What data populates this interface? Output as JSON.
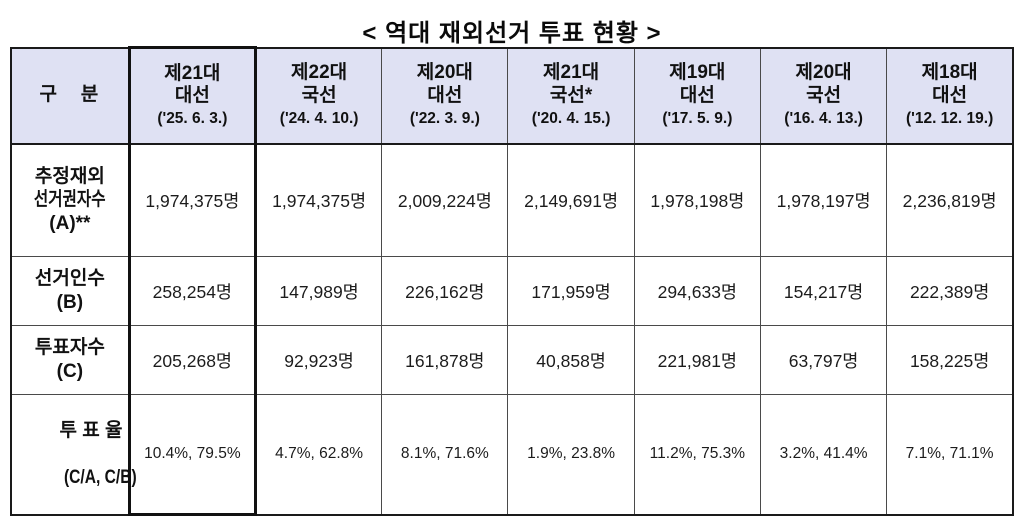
{
  "title": "< 역대 재외선거 투표 현황 >",
  "colors": {
    "header_bg": "#dfe1f3",
    "border": "#4a4a4a",
    "outer_border": "#1a1a1a",
    "highlight_border": "#111111",
    "text": "#111111"
  },
  "table": {
    "corner_label": "구   분",
    "columns": [
      {
        "line1": "제21대",
        "line2": "대선",
        "date": "('25. 6. 3.)",
        "highlighted": true
      },
      {
        "line1": "제22대",
        "line2": "국선",
        "date": "('24. 4. 10.)",
        "highlighted": false
      },
      {
        "line1": "제20대",
        "line2": "대선",
        "date": "('22. 3. 9.)",
        "highlighted": false
      },
      {
        "line1": "제21대",
        "line2": "국선*",
        "date": "('20. 4. 15.)",
        "highlighted": false
      },
      {
        "line1": "제19대",
        "line2": "대선",
        "date": "('17. 5. 9.)",
        "highlighted": false
      },
      {
        "line1": "제20대",
        "line2": "국선",
        "date": "('16. 4. 13.)",
        "highlighted": false
      },
      {
        "line1": "제18대",
        "line2": "대선",
        "date": "('12. 12. 19.)",
        "highlighted": false
      }
    ],
    "rows": [
      {
        "label_line1": "추정재외",
        "label_line2": "선거권자수",
        "label_line3": "(A)**",
        "values": [
          "1,974,375명",
          "1,974,375명",
          "2,009,224명",
          "2,149,691명",
          "1,978,198명",
          "1,978,197명",
          "2,236,819명"
        ]
      },
      {
        "label_line1": "선거인수",
        "label_line2": "(B)",
        "label_line3": "",
        "values": [
          "258,254명",
          "147,989명",
          "226,162명",
          "171,959명",
          "294,633명",
          "154,217명",
          "222,389명"
        ]
      },
      {
        "label_line1": "투표자수",
        "label_line2": "(C)",
        "label_line3": "",
        "values": [
          "205,268명",
          "92,923명",
          "161,878명",
          "40,858명",
          "221,981명",
          "63,797명",
          "158,225명"
        ]
      },
      {
        "label_line1": "투 표 율",
        "label_line2": "(C/A, C/B)",
        "label_line3": "",
        "values": [
          "10.4%, 79.5%",
          "4.7%, 62.8%",
          "8.1%, 71.6%",
          "1.9%, 23.8%",
          "11.2%, 75.3%",
          "3.2%, 41.4%",
          "7.1%, 71.1%"
        ]
      }
    ]
  },
  "chart_data": {
    "type": "table",
    "title": "역대 재외선거 투표 현황",
    "columns": [
      "제21대 대선 ('25. 6. 3.)",
      "제22대 국선 ('24. 4. 10.)",
      "제20대 대선 ('22. 3. 9.)",
      "제21대 국선* ('20. 4. 15.)",
      "제19대 대선 ('17. 5. 9.)",
      "제20대 국선 ('16. 4. 13.)",
      "제18대 대선 ('12. 12. 19.)"
    ],
    "row_labels": [
      "추정재외선거권자수 (A)**",
      "선거인수 (B)",
      "투표자수 (C)",
      "투표율 (C/A, C/B)"
    ],
    "estimated_eligible_A": [
      1974375,
      1974375,
      2009224,
      2149691,
      1978198,
      1978197,
      2236819
    ],
    "registered_voters_B": [
      258254,
      147989,
      226162,
      171959,
      294633,
      154217,
      222389
    ],
    "votes_cast_C": [
      205268,
      92923,
      161878,
      40858,
      221981,
      63797,
      158225
    ],
    "turnout_CA_percent": [
      10.4,
      4.7,
      8.1,
      1.9,
      11.2,
      3.2,
      7.1
    ],
    "turnout_CB_percent": [
      79.5,
      62.8,
      71.6,
      23.8,
      75.3,
      41.4,
      71.1
    ]
  }
}
